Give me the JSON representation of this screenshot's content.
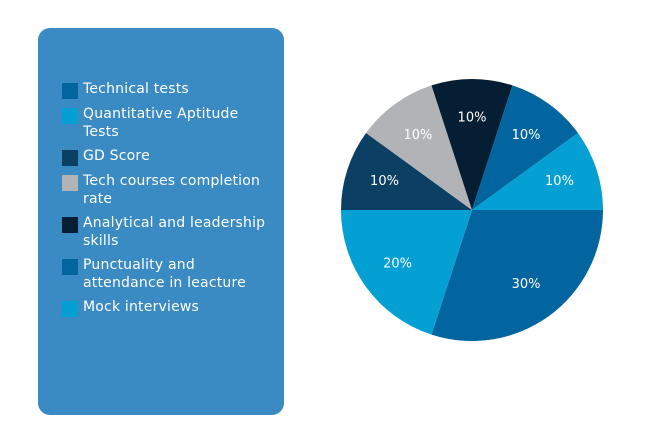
{
  "chart_data": {
    "type": "pie",
    "title": "",
    "legend_placement": "left",
    "slices": [
      {
        "label": "Technical tests",
        "value": 30,
        "display": "30%",
        "color": "#03659f"
      },
      {
        "label": "Quantitative Aptitude Tests",
        "value": 20,
        "display": "20%",
        "color": "#05a0d3"
      },
      {
        "label": "GD Score",
        "value": 10,
        "display": "10%",
        "color": "#0b3f64"
      },
      {
        "label": "Tech courses completion rate",
        "value": 10,
        "display": "10%",
        "color": "#b1b3b6"
      },
      {
        "label": "Analytical and leadership skills",
        "value": 10,
        "display": "10%",
        "color": "#051e33"
      },
      {
        "label": "Punctuality and attendance in leacture",
        "value": 10,
        "display": "10%",
        "color": "#03659f"
      },
      {
        "label": "Mock interviews",
        "value": 10,
        "display": "10%",
        "color": "#05a0d3"
      }
    ]
  }
}
